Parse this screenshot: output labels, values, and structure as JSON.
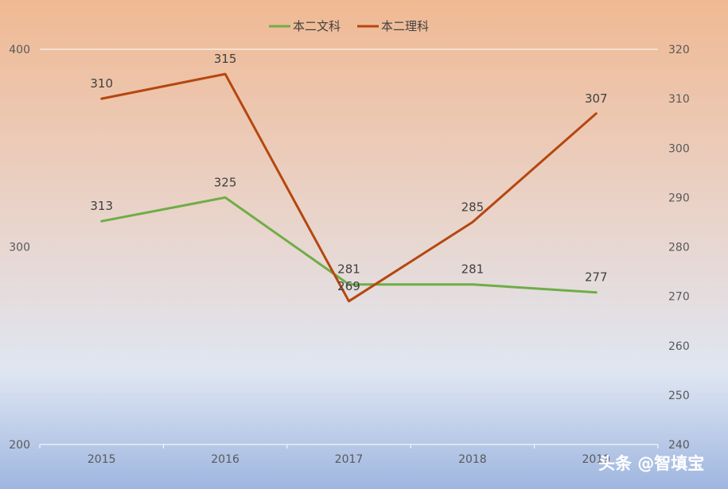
{
  "chart_data": {
    "type": "line",
    "title": "",
    "xlabel": "",
    "categories": [
      "2015",
      "2016",
      "2017",
      "2018",
      "2019"
    ],
    "y_left": {
      "min": 200,
      "max": 400,
      "ticks": [
        "200",
        "300",
        "400"
      ]
    },
    "y_right": {
      "min": 240,
      "max": 320,
      "ticks": [
        "240",
        "250",
        "260",
        "270",
        "280",
        "290",
        "300",
        "310",
        "320"
      ]
    },
    "series": [
      {
        "name": "本二文科",
        "axis": "left",
        "color": "#70ad47",
        "values": [
          313,
          325,
          281,
          281,
          277
        ],
        "labels": [
          "313",
          "325",
          "281",
          "281",
          "277"
        ]
      },
      {
        "name": "本二理科",
        "axis": "right",
        "color": "#b5470f",
        "values": [
          310,
          315,
          269,
          285,
          307
        ],
        "labels": [
          "310",
          "315",
          "269",
          "285",
          "307"
        ]
      }
    ],
    "legend_position": "top-center",
    "grid": "horizontal-top-only"
  },
  "watermark": {
    "text": "头条 @智填宝"
  }
}
